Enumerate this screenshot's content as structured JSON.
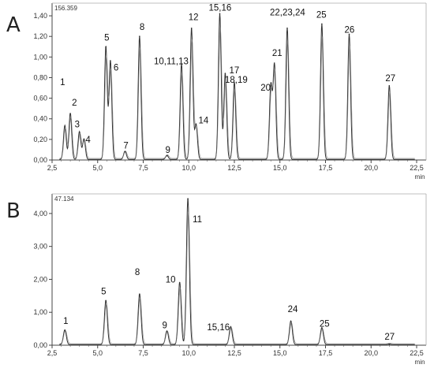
{
  "chart_data": [
    {
      "type": "line",
      "panel_label": "A",
      "max_label": "156.359",
      "xlabel": "min",
      "ylabel": "",
      "xlim": [
        2.5,
        22.5
      ],
      "ylim": [
        0,
        1.5
      ],
      "grid": false,
      "x_ticks": [
        "2,5",
        "5,0",
        "7,5",
        "10,0",
        "12,5",
        "15,0",
        "17,5",
        "20,0",
        "22,5"
      ],
      "y_ticks": [
        "0,00",
        "0,20",
        "0,40",
        "0,60",
        "0,80",
        "1,00",
        "1,20",
        "1,40"
      ],
      "peaks": [
        {
          "x": 3.2,
          "y": 0.33,
          "label": "1"
        },
        {
          "x": 3.5,
          "y": 0.45,
          "label": "2"
        },
        {
          "x": 4.0,
          "y": 0.27,
          "label": "3"
        },
        {
          "x": 4.25,
          "y": 0.2,
          "label": "4"
        },
        {
          "x": 5.45,
          "y": 1.1,
          "label": "5"
        },
        {
          "x": 5.7,
          "y": 0.96,
          "label": "6"
        },
        {
          "x": 6.5,
          "y": 0.08,
          "label": "7"
        },
        {
          "x": 7.3,
          "y": 1.2,
          "label": "8"
        },
        {
          "x": 8.8,
          "y": 0.04,
          "label": "9"
        },
        {
          "x": 9.6,
          "y": 0.93,
          "label": "10,11,13"
        },
        {
          "x": 10.15,
          "y": 1.28,
          "label": "12"
        },
        {
          "x": 10.4,
          "y": 0.34,
          "label": "14"
        },
        {
          "x": 11.7,
          "y": 1.42,
          "label": "15,16"
        },
        {
          "x": 12.0,
          "y": 0.84,
          "label": "17"
        },
        {
          "x": 12.5,
          "y": 0.75,
          "label": "18,19"
        },
        {
          "x": 14.5,
          "y": 0.72,
          "label": "20"
        },
        {
          "x": 14.7,
          "y": 0.92,
          "label": "21"
        },
        {
          "x": 15.4,
          "y": 1.28,
          "label": "22,23,24"
        },
        {
          "x": 17.3,
          "y": 1.32,
          "label": "25"
        },
        {
          "x": 18.8,
          "y": 1.22,
          "label": "26"
        },
        {
          "x": 21.0,
          "y": 0.72,
          "label": "27"
        }
      ]
    },
    {
      "type": "line",
      "panel_label": "B",
      "max_label": "47.134",
      "xlabel": "min",
      "ylabel": "",
      "xlim": [
        2.5,
        22.5
      ],
      "ylim": [
        0,
        4.5
      ],
      "grid": false,
      "x_ticks": [
        "2,5",
        "5,0",
        "7,5",
        "10,0",
        "12,5",
        "15,0",
        "17,5",
        "20,0",
        "22,5"
      ],
      "y_ticks": [
        "0,00",
        "1,00",
        "2,00",
        "3,00",
        "4,00"
      ],
      "peaks": [
        {
          "x": 3.2,
          "y": 0.45,
          "label": "1"
        },
        {
          "x": 5.45,
          "y": 1.35,
          "label": "5"
        },
        {
          "x": 7.3,
          "y": 1.55,
          "label": "8"
        },
        {
          "x": 8.8,
          "y": 0.42,
          "label": "9"
        },
        {
          "x": 9.5,
          "y": 1.9,
          "label": "10"
        },
        {
          "x": 9.95,
          "y": 4.45,
          "label": "11"
        },
        {
          "x": 12.3,
          "y": 0.55,
          "label": "15,16"
        },
        {
          "x": 15.6,
          "y": 0.72,
          "label": "24"
        },
        {
          "x": 17.3,
          "y": 0.52,
          "label": "25"
        },
        {
          "x": 21.0,
          "y": 0.02,
          "label": "27"
        }
      ]
    }
  ]
}
